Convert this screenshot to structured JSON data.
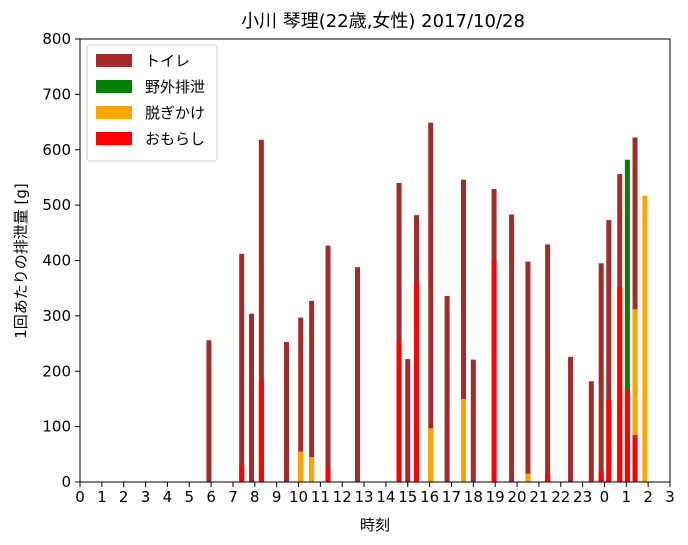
{
  "chart_data": {
    "type": "bar",
    "title": "小川 琴理(22歳,女性)  2017/10/28",
    "xlabel": "時刻",
    "ylabel": "1回あたりの排泄量 [g]",
    "ylim": [
      0,
      800
    ],
    "yticks": [
      0,
      100,
      200,
      300,
      400,
      500,
      600,
      700,
      800
    ],
    "xlim": [
      0,
      27
    ],
    "xticks": [
      0,
      1,
      2,
      3,
      4,
      5,
      6,
      7,
      8,
      9,
      10,
      11,
      12,
      13,
      14,
      15,
      16,
      17,
      18,
      19,
      20,
      21,
      22,
      23,
      24,
      25,
      26,
      27
    ],
    "xtick_labels": [
      "0",
      "1",
      "2",
      "3",
      "4",
      "5",
      "6",
      "7",
      "8",
      "9",
      "10",
      "11",
      "12",
      "13",
      "14",
      "15",
      "16",
      "17",
      "18",
      "19",
      "20",
      "21",
      "22",
      "23",
      "0",
      "1",
      "2",
      "3"
    ],
    "grid": false,
    "legend_position": "top-left",
    "series": [
      {
        "name": "トイレ",
        "color": "#a52a2a"
      },
      {
        "name": "野外排泄",
        "color": "#008000"
      },
      {
        "name": "脱ぎかけ",
        "color": "#ffa500"
      },
      {
        "name": "おもらし",
        "color": "#ff0000"
      }
    ],
    "bars": [
      {
        "x": 5.9,
        "segments": [
          {
            "series": "トイレ",
            "value": 256
          }
        ]
      },
      {
        "x": 7.4,
        "segments": [
          {
            "series": "トイレ",
            "value": 412
          },
          {
            "series": "おもらし",
            "value": 30
          }
        ]
      },
      {
        "x": 7.85,
        "segments": [
          {
            "series": "トイレ",
            "value": 304
          }
        ]
      },
      {
        "x": 8.3,
        "segments": [
          {
            "series": "トイレ",
            "value": 618
          },
          {
            "series": "おもらし",
            "value": 183
          }
        ]
      },
      {
        "x": 9.45,
        "segments": [
          {
            "series": "トイレ",
            "value": 253
          }
        ]
      },
      {
        "x": 10.1,
        "segments": [
          {
            "series": "トイレ",
            "value": 297
          },
          {
            "series": "脱ぎかけ",
            "value": 55
          }
        ]
      },
      {
        "x": 10.6,
        "segments": [
          {
            "series": "トイレ",
            "value": 327
          },
          {
            "series": "脱ぎかけ",
            "value": 45
          }
        ]
      },
      {
        "x": 11.35,
        "segments": [
          {
            "series": "トイレ",
            "value": 427
          },
          {
            "series": "おもらし",
            "value": 27
          }
        ]
      },
      {
        "x": 12.7,
        "segments": [
          {
            "series": "トイレ",
            "value": 388
          }
        ]
      },
      {
        "x": 14.6,
        "segments": [
          {
            "series": "トイレ",
            "value": 540
          },
          {
            "series": "おもらし",
            "value": 255
          }
        ]
      },
      {
        "x": 15.0,
        "segments": [
          {
            "series": "トイレ",
            "value": 222
          }
        ]
      },
      {
        "x": 15.4,
        "segments": [
          {
            "series": "トイレ",
            "value": 482
          },
          {
            "series": "おもらし",
            "value": 360
          }
        ]
      },
      {
        "x": 16.05,
        "segments": [
          {
            "series": "トイレ",
            "value": 649
          },
          {
            "series": "脱ぎかけ",
            "value": 97
          }
        ]
      },
      {
        "x": 16.8,
        "segments": [
          {
            "series": "トイレ",
            "value": 336
          }
        ]
      },
      {
        "x": 17.55,
        "segments": [
          {
            "series": "トイレ",
            "value": 546
          },
          {
            "series": "脱ぎかけ",
            "value": 150
          }
        ]
      },
      {
        "x": 18.0,
        "segments": [
          {
            "series": "トイレ",
            "value": 221
          }
        ]
      },
      {
        "x": 18.95,
        "segments": [
          {
            "series": "トイレ",
            "value": 529
          },
          {
            "series": "おもらし",
            "value": 400
          }
        ]
      },
      {
        "x": 19.75,
        "segments": [
          {
            "series": "トイレ",
            "value": 483
          }
        ]
      },
      {
        "x": 20.5,
        "segments": [
          {
            "series": "トイレ",
            "value": 398
          },
          {
            "series": "脱ぎかけ",
            "value": 15
          }
        ]
      },
      {
        "x": 21.4,
        "segments": [
          {
            "series": "トイレ",
            "value": 429
          },
          {
            "series": "おもらし",
            "value": 15
          }
        ]
      },
      {
        "x": 22.45,
        "segments": [
          {
            "series": "トイレ",
            "value": 226
          }
        ]
      },
      {
        "x": 23.4,
        "segments": [
          {
            "series": "トイレ",
            "value": 182
          }
        ]
      },
      {
        "x": 23.85,
        "segments": [
          {
            "series": "トイレ",
            "value": 395
          },
          {
            "series": "おもらし",
            "value": 20
          }
        ]
      },
      {
        "x": 24.2,
        "segments": [
          {
            "series": "トイレ",
            "value": 473
          },
          {
            "series": "おもらし",
            "value": 150
          }
        ]
      },
      {
        "x": 24.7,
        "segments": [
          {
            "series": "トイレ",
            "value": 556
          },
          {
            "series": "おもらし",
            "value": 352
          }
        ]
      },
      {
        "x": 25.05,
        "segments": [
          {
            "series": "野外排泄",
            "value": 582
          },
          {
            "series": "おもらし",
            "value": 167
          }
        ]
      },
      {
        "x": 25.4,
        "segments": [
          {
            "series": "トイレ",
            "value": 622
          },
          {
            "series": "脱ぎかけ",
            "value": 312
          },
          {
            "series": "おもらし",
            "value": 85
          }
        ]
      },
      {
        "x": 25.85,
        "segments": [
          {
            "series": "脱ぎかけ",
            "value": 517
          }
        ]
      }
    ]
  }
}
